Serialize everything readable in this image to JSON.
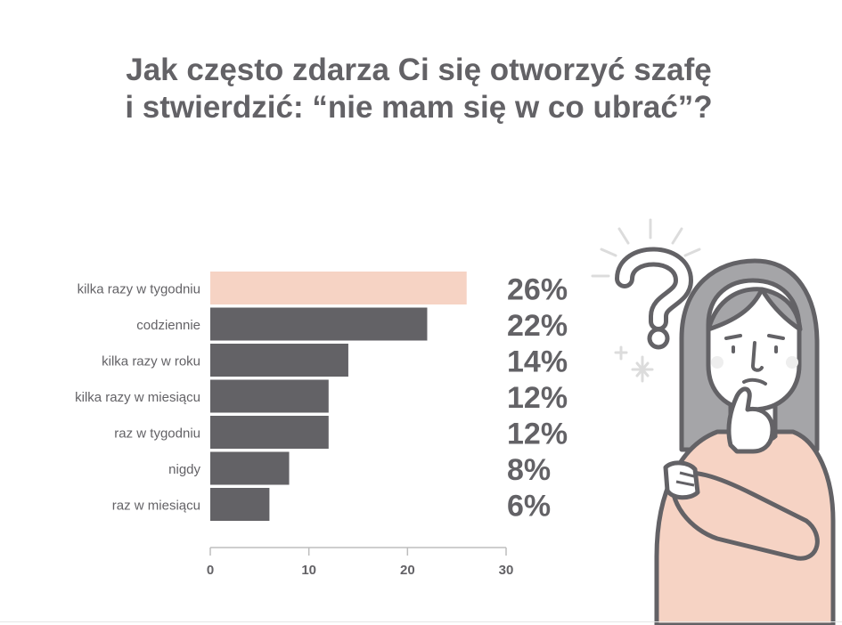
{
  "title": {
    "line1": "Jak często zdarza Ci się otworzyć szafę",
    "line2": "i stwierdzić: “nie mam się w co ubrać”?"
  },
  "colors": {
    "highlight_bar": "#f6d3c4",
    "bar": "#636266",
    "text": "#636266",
    "skin": "#f6d3c4",
    "hair": "#a5a5a8"
  },
  "illustration": {
    "name": "thinking-woman-with-question-mark"
  },
  "chart_data": {
    "type": "bar",
    "orientation": "horizontal",
    "categories": [
      "kilka razy w tygodniu",
      "codziennie",
      "kilka razy w roku",
      "kilka razy w miesiącu",
      "raz w tygodniu",
      "nigdy",
      "raz w miesiącu"
    ],
    "values": [
      26,
      22,
      14,
      12,
      12,
      8,
      6
    ],
    "value_labels": [
      "26%",
      "22%",
      "14%",
      "12%",
      "12%",
      "8%",
      "6%"
    ],
    "highlight_index": 0,
    "xlim": [
      0,
      30
    ],
    "xticks": [
      "0",
      "10",
      "20",
      "30"
    ],
    "xlabel": "",
    "ylabel": "",
    "grid": false
  }
}
